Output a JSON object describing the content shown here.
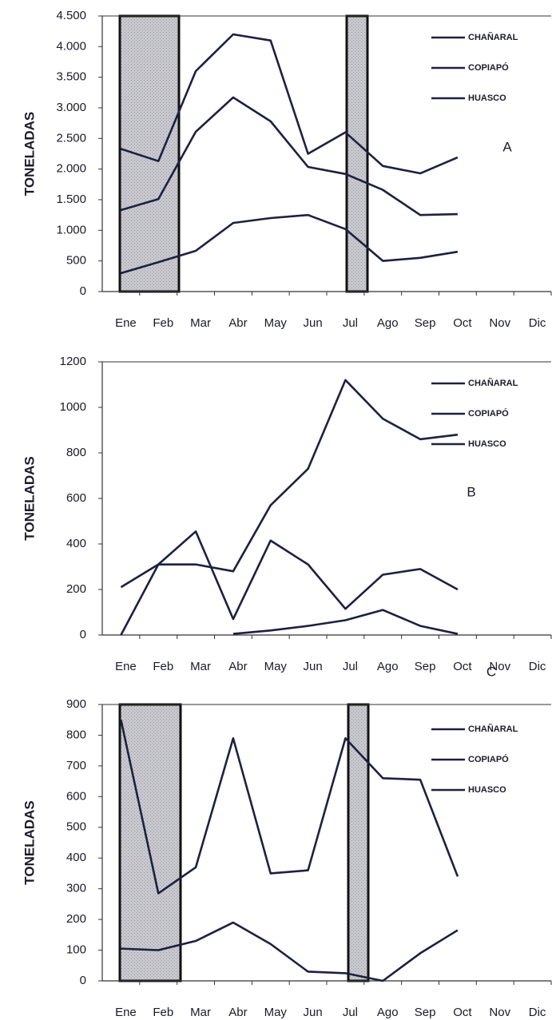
{
  "chart_data": [
    {
      "type": "line",
      "annotation": "A",
      "ylabel": "TONELADAS",
      "categories": [
        "Ene",
        "Feb",
        "Mar",
        "Abr",
        "May",
        "Jun",
        "Jul",
        "Ago",
        "Sep",
        "Oct",
        "Nov",
        "Dic"
      ],
      "ylim": [
        0,
        4500
      ],
      "yticks": [
        0,
        500,
        {
          "value": 1000,
          "label": "1.000"
        },
        {
          "value": 1500,
          "label": "1.500"
        },
        {
          "value": 2000,
          "label": "2.000"
        },
        {
          "value": 2500,
          "label": "2.500"
        },
        {
          "value": 3000,
          "label": "3.000"
        },
        {
          "value": 3500,
          "label": "3.500"
        },
        {
          "value": 4000,
          "label": "4.000"
        },
        {
          "value": 4500,
          "label": "4.500"
        }
      ],
      "series": [
        {
          "name": "CHAÑARAL",
          "color": "#1c2140",
          "values": [
            2330,
            2130,
            3600,
            4200,
            4100,
            2250,
            2600,
            2050,
            1930,
            2190,
            null,
            null
          ]
        },
        {
          "name": "COPIAPÓ",
          "color": "#1c2140",
          "values": [
            1330,
            1510,
            2610,
            3170,
            2780,
            2035,
            1920,
            1660,
            1250,
            1265,
            null,
            null
          ]
        },
        {
          "name": "HUASCO",
          "color": "#1c2140",
          "values": [
            300,
            480,
            665,
            1120,
            1200,
            1250,
            1020,
            500,
            550,
            650,
            null,
            null
          ]
        }
      ]
    },
    {
      "type": "line",
      "annotation": "B",
      "ylabel": "TONELADAS",
      "categories": [
        "Ene",
        "Feb",
        "Mar",
        "Abr",
        "May",
        "Jun",
        "Jul",
        "Ago",
        "Sep",
        "Oct",
        "Nov",
        "Dic"
      ],
      "ylim": [
        0,
        1200
      ],
      "yticks": [
        0,
        200,
        400,
        600,
        800,
        1000,
        1200
      ],
      "series": [
        {
          "name": "CHAÑARAL",
          "color": "#1c2140",
          "values": [
            210,
            310,
            310,
            280,
            570,
            730,
            1120,
            950,
            860,
            880,
            null,
            null
          ]
        },
        {
          "name": "COPIAPÓ",
          "color": "#1c2140",
          "values": [
            0,
            310,
            455,
            70,
            415,
            310,
            115,
            265,
            290,
            200,
            null,
            null
          ]
        },
        {
          "name": "HUASCO",
          "color": "#1c2140",
          "values": [
            null,
            null,
            null,
            5,
            20,
            40,
            65,
            110,
            40,
            5,
            null,
            null
          ]
        }
      ]
    },
    {
      "type": "line",
      "annotation": "C",
      "ylabel": "TONELADAS",
      "categories": [
        "Ene",
        "Feb",
        "Mar",
        "Abr",
        "May",
        "Jun",
        "Jul",
        "Ago",
        "Sep",
        "Oct",
        "Nov",
        "Dic"
      ],
      "ylim": [
        0,
        900
      ],
      "yticks": [
        0,
        100,
        200,
        300,
        400,
        500,
        600,
        700,
        800,
        900
      ],
      "series": [
        {
          "name": "CHAÑARAL",
          "color": "#1c2140",
          "values": [
            850,
            285,
            370,
            790,
            350,
            360,
            790,
            660,
            655,
            340,
            null,
            null
          ]
        },
        {
          "name": "COPIAPÓ",
          "color": "#1c2140",
          "values": [
            105,
            100,
            130,
            190,
            120,
            30,
            25,
            0,
            90,
            165,
            null,
            null
          ]
        },
        {
          "name": "HUASCO",
          "color": "#1c2140",
          "values": [
            null,
            null,
            null,
            null,
            null,
            null,
            null,
            null,
            null,
            null,
            null,
            null
          ]
        }
      ]
    }
  ]
}
